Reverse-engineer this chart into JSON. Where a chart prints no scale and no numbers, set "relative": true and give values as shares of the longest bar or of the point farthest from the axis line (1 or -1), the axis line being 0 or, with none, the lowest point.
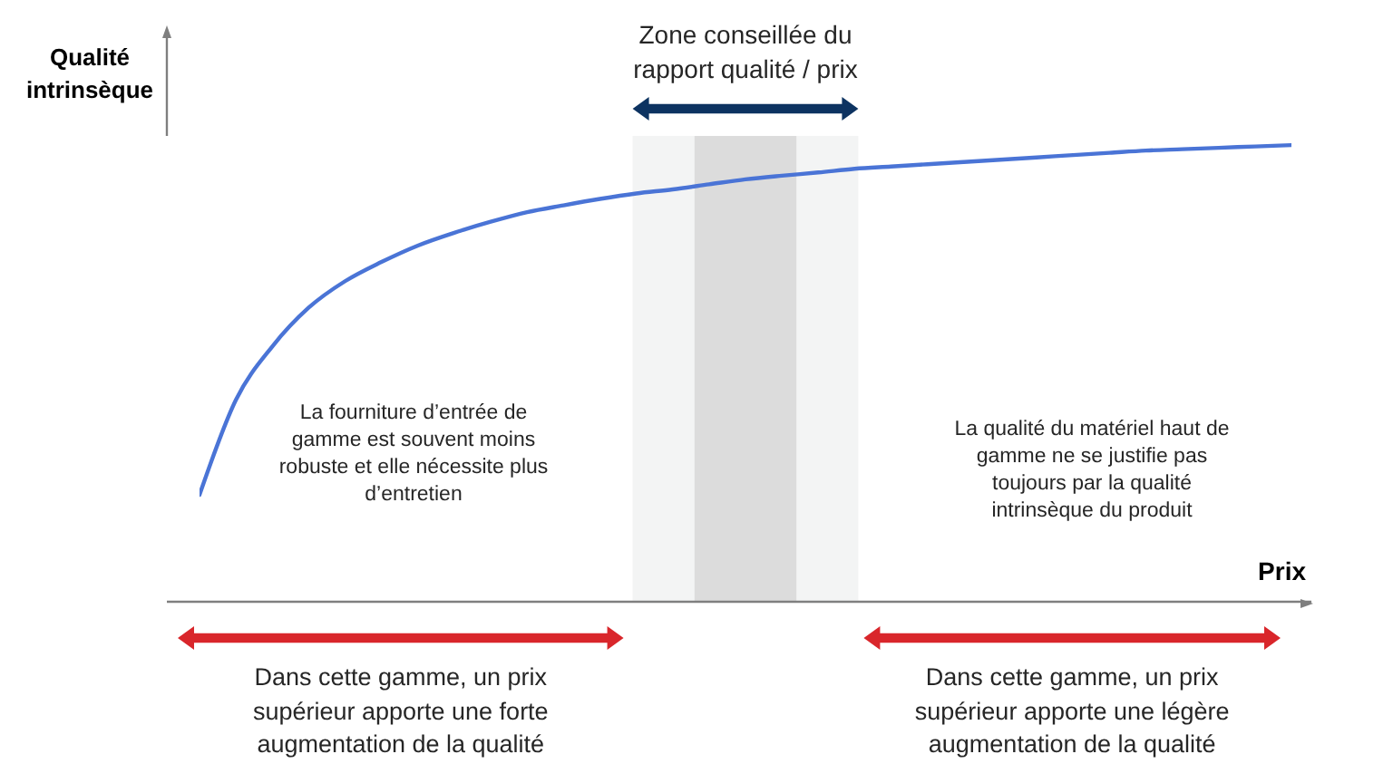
{
  "chart_data": {
    "type": "line",
    "relative": true,
    "xlabel": "Prix",
    "ylabel": "Qualité\nintrinsèque",
    "categories": [
      null,
      null,
      null,
      null,
      null,
      null,
      null,
      null,
      null,
      null,
      null,
      null,
      null,
      null,
      null,
      null,
      null,
      null,
      null,
      null,
      null,
      null,
      null,
      null,
      null,
      null,
      null,
      null,
      null,
      null,
      null
    ],
    "values": [
      0.234,
      0.442,
      0.559,
      0.644,
      0.702,
      0.744,
      0.78,
      0.808,
      0.832,
      0.853,
      0.868,
      0.882,
      0.894,
      0.903,
      0.914,
      0.925,
      0.933,
      0.94,
      0.948,
      0.953,
      0.958,
      0.963,
      0.968,
      0.973,
      0.978,
      0.983,
      0.988,
      0.991,
      0.994,
      0.997,
      1.0
    ],
    "color": "#4a74d6",
    "line_style": "solid",
    "annotations": [
      "Zone conseillée du\nrapport qualité / prix",
      "La fourniture d’entrée de\ngamme est souvent moins\nrobuste et elle nécessite plus\nd’entretien",
      "La qualité du matériel haut de\ngamme ne se justifie pas\ntoujours par la qualité\nintrinsèque du produit",
      "Dans cette gamme, un prix\nsupérieur apporte une forte\naugmentation de la qualité",
      "Dans cette gamme, un prix\nsupérieur apporte une légère\naugmentation de la qualité"
    ]
  }
}
